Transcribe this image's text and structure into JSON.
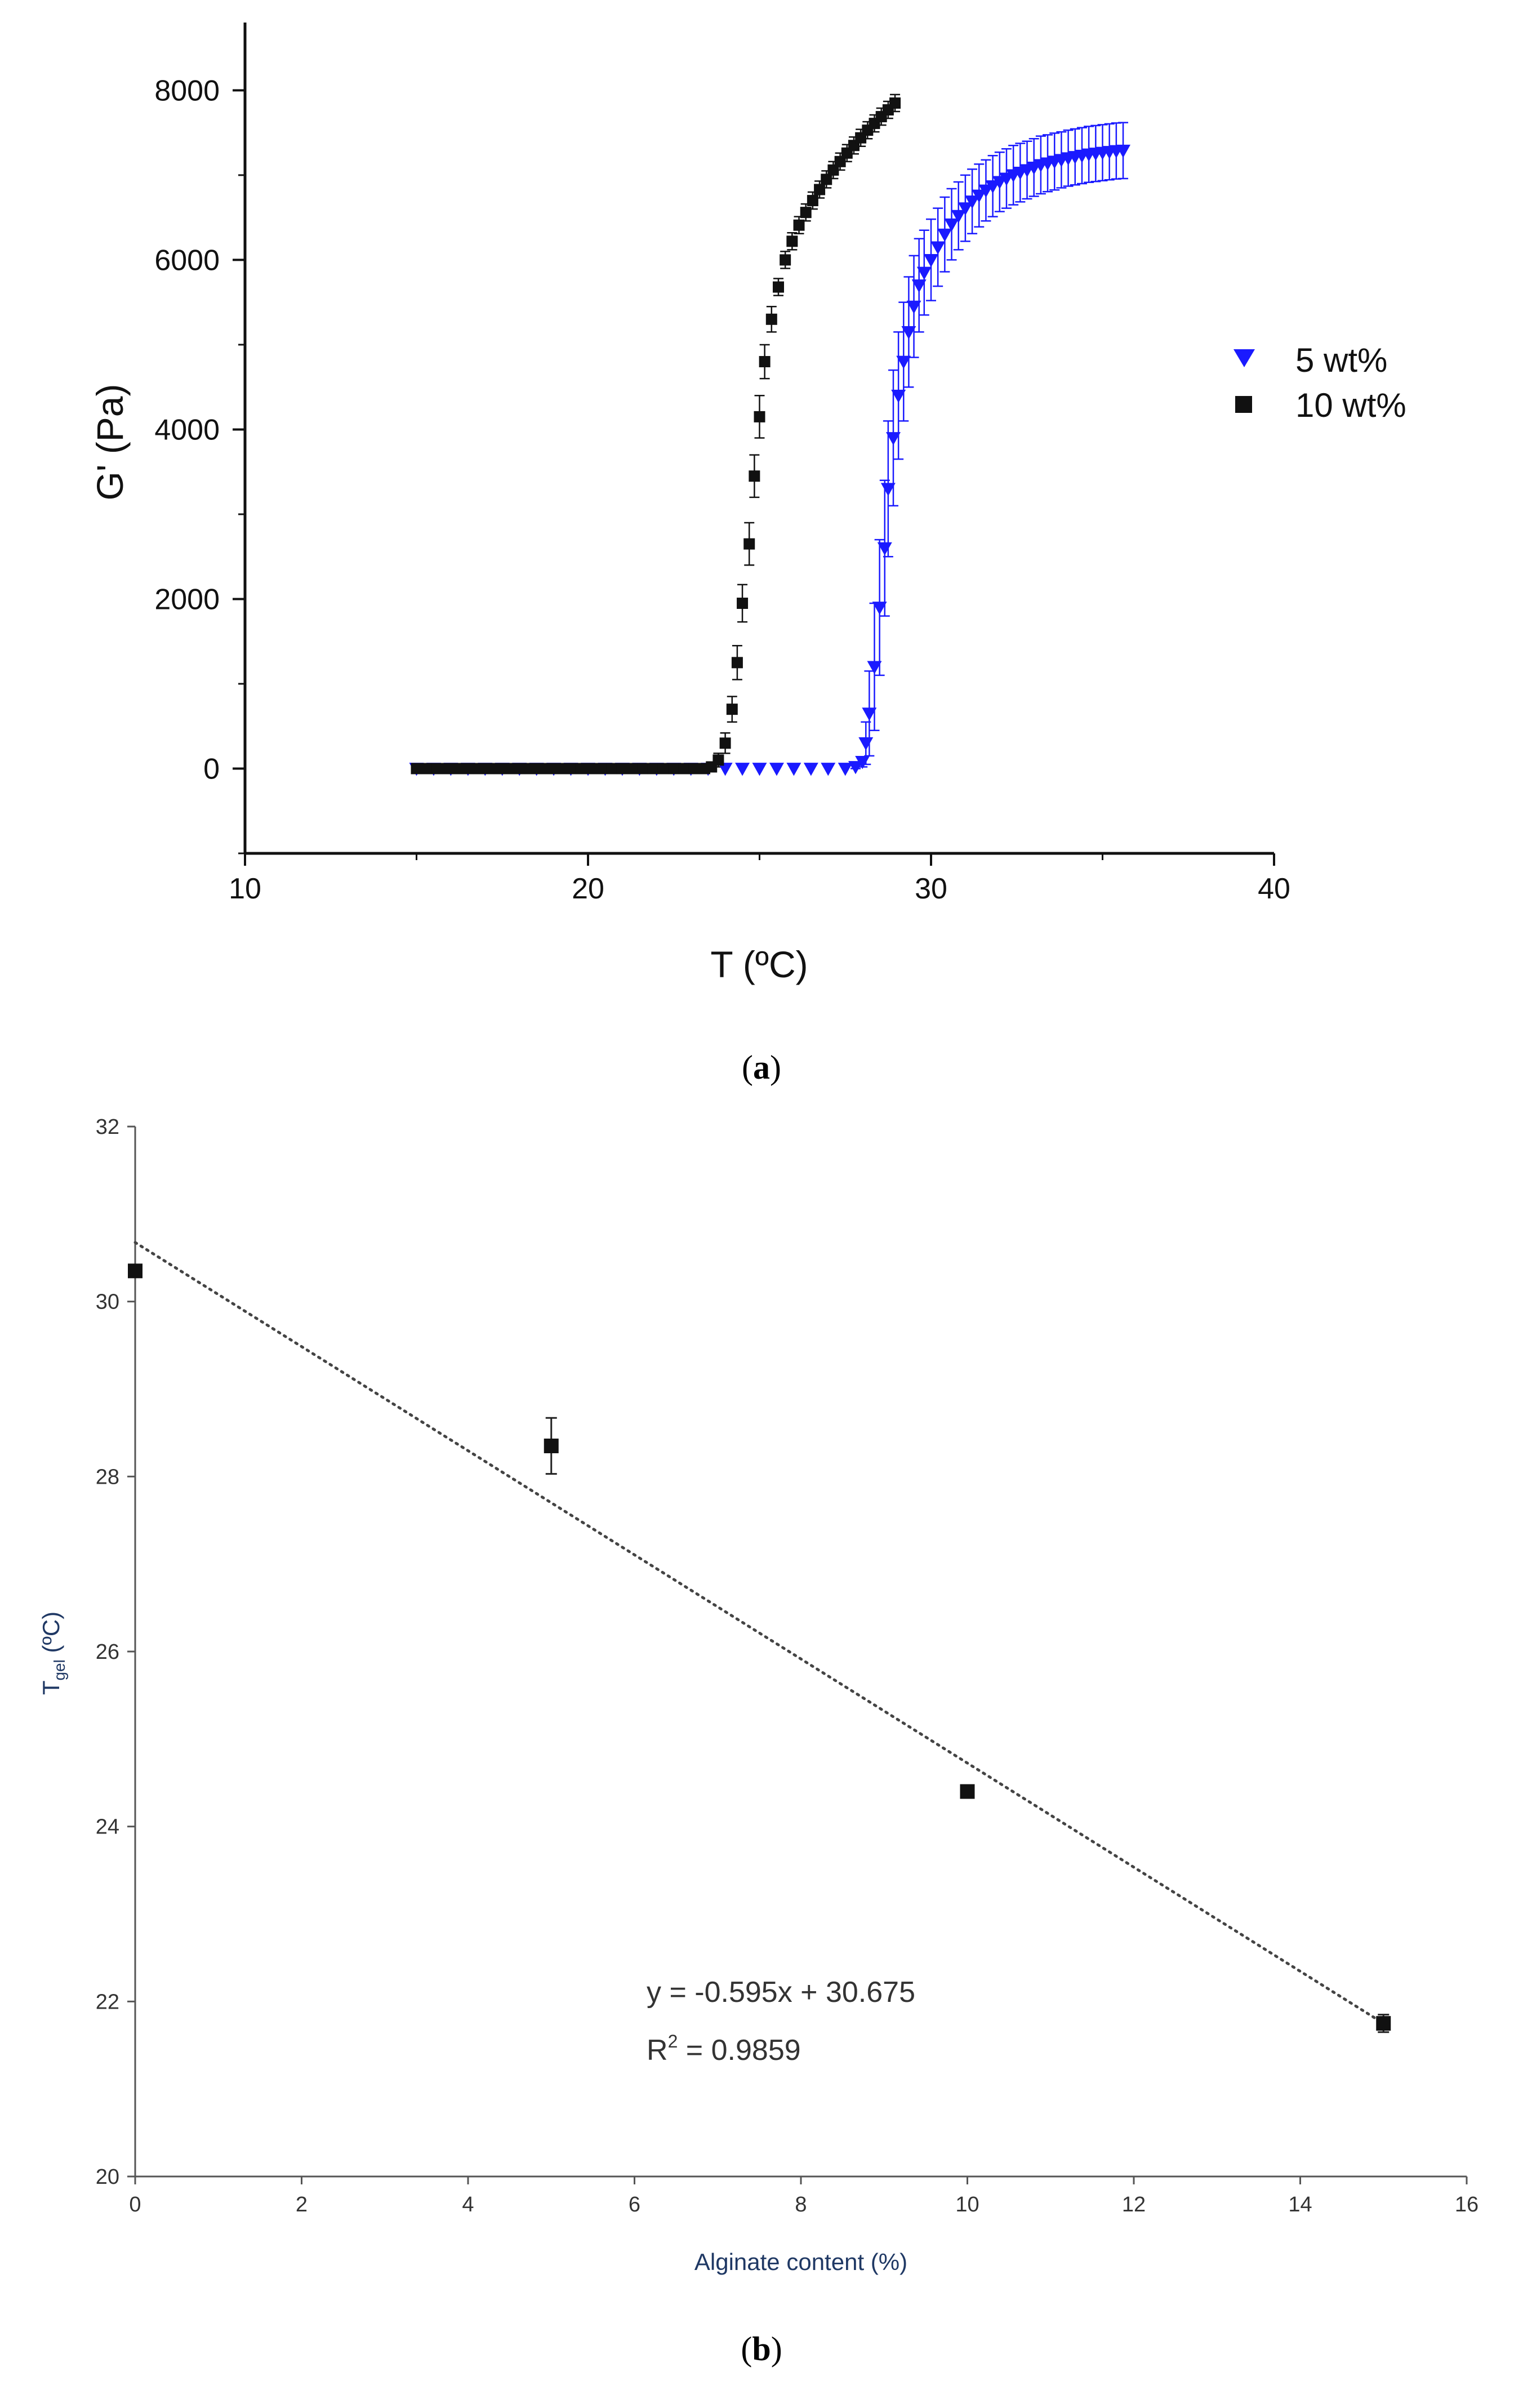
{
  "chart_data": [
    {
      "type": "scatter",
      "panel": "a",
      "caption": {
        "open": "(",
        "letter": "a",
        "close": ")"
      },
      "xlabel": "T (ºC)",
      "ylabel": "G' (Pa)",
      "xlim": [
        10,
        40
      ],
      "ylim": [
        -1000,
        8800
      ],
      "xticks": [
        "10",
        "20",
        "30",
        "40"
      ],
      "yticks": [
        "0",
        "2000",
        "4000",
        "6000",
        "8000"
      ],
      "legend_position": "right",
      "series": [
        {
          "name": "5 wt%",
          "marker": "triangle-down",
          "color": "#1a1aff",
          "points": [
            [
              15.0,
              0
            ],
            [
              15.5,
              0
            ],
            [
              16.0,
              0
            ],
            [
              16.5,
              0
            ],
            [
              17.0,
              0
            ],
            [
              17.5,
              0
            ],
            [
              18.0,
              0
            ],
            [
              18.5,
              0
            ],
            [
              19.0,
              0
            ],
            [
              19.5,
              0
            ],
            [
              20.0,
              0
            ],
            [
              20.5,
              0
            ],
            [
              21.0,
              0
            ],
            [
              21.5,
              0
            ],
            [
              22.0,
              0
            ],
            [
              22.5,
              0
            ],
            [
              23.0,
              0
            ],
            [
              23.5,
              0
            ],
            [
              24.0,
              0
            ],
            [
              24.5,
              0
            ],
            [
              25.0,
              0
            ],
            [
              25.5,
              0
            ],
            [
              26.0,
              0
            ],
            [
              26.5,
              0
            ],
            [
              27.0,
              0
            ],
            [
              27.5,
              0
            ],
            [
              27.8,
              20
            ],
            [
              28.0,
              80
            ],
            [
              28.1,
              300
            ],
            [
              28.2,
              650
            ],
            [
              28.35,
              1200
            ],
            [
              28.5,
              1900
            ],
            [
              28.65,
              2600
            ],
            [
              28.75,
              3300
            ],
            [
              28.9,
              3900
            ],
            [
              29.05,
              4400
            ],
            [
              29.2,
              4800
            ],
            [
              29.35,
              5150
            ],
            [
              29.5,
              5450
            ],
            [
              29.65,
              5700
            ],
            [
              29.8,
              5850
            ],
            [
              30.0,
              6000
            ],
            [
              30.2,
              6150
            ],
            [
              30.4,
              6300
            ],
            [
              30.6,
              6420
            ],
            [
              30.8,
              6520
            ],
            [
              31.0,
              6610
            ],
            [
              31.2,
              6690
            ],
            [
              31.4,
              6760
            ],
            [
              31.6,
              6820
            ],
            [
              31.8,
              6870
            ],
            [
              32.0,
              6920
            ],
            [
              32.2,
              6960
            ],
            [
              32.4,
              7000
            ],
            [
              32.6,
              7030
            ],
            [
              32.8,
              7060
            ],
            [
              33.0,
              7090
            ],
            [
              33.2,
              7120
            ],
            [
              33.4,
              7140
            ],
            [
              33.6,
              7160
            ],
            [
              33.8,
              7180
            ],
            [
              34.0,
              7200
            ],
            [
              34.2,
              7215
            ],
            [
              34.4,
              7230
            ],
            [
              34.6,
              7245
            ],
            [
              34.8,
              7255
            ],
            [
              35.0,
              7265
            ],
            [
              35.2,
              7275
            ],
            [
              35.4,
              7285
            ],
            [
              35.6,
              7290
            ]
          ],
          "errors": [
            0,
            0,
            0,
            0,
            0,
            0,
            0,
            0,
            0,
            0,
            0,
            0,
            0,
            0,
            0,
            0,
            0,
            0,
            0,
            0,
            0,
            0,
            0,
            0,
            0,
            0,
            20,
            60,
            250,
            500,
            750,
            800,
            800,
            800,
            800,
            750,
            700,
            650,
            600,
            550,
            500,
            480,
            460,
            440,
            420,
            400,
            390,
            380,
            370,
            360,
            360,
            350,
            350,
            350,
            345,
            340,
            340,
            340,
            335,
            335,
            330,
            330,
            330,
            330,
            330,
            330,
            330,
            330,
            330,
            330
          ]
        },
        {
          "name": "10 wt%",
          "marker": "square",
          "color": "#111111",
          "points": [
            [
              15.0,
              0
            ],
            [
              15.3,
              0
            ],
            [
              15.6,
              0
            ],
            [
              15.9,
              0
            ],
            [
              16.2,
              0
            ],
            [
              16.5,
              0
            ],
            [
              16.8,
              0
            ],
            [
              17.1,
              0
            ],
            [
              17.4,
              0
            ],
            [
              17.7,
              0
            ],
            [
              18.0,
              0
            ],
            [
              18.3,
              0
            ],
            [
              18.6,
              0
            ],
            [
              18.9,
              0
            ],
            [
              19.2,
              0
            ],
            [
              19.5,
              0
            ],
            [
              19.8,
              0
            ],
            [
              20.1,
              0
            ],
            [
              20.4,
              0
            ],
            [
              20.7,
              0
            ],
            [
              21.0,
              0
            ],
            [
              21.3,
              0
            ],
            [
              21.6,
              0
            ],
            [
              21.9,
              0
            ],
            [
              22.2,
              0
            ],
            [
              22.5,
              0
            ],
            [
              22.8,
              0
            ],
            [
              23.1,
              0
            ],
            [
              23.4,
              0
            ],
            [
              23.6,
              20
            ],
            [
              23.8,
              100
            ],
            [
              24.0,
              300
            ],
            [
              24.2,
              700
            ],
            [
              24.35,
              1250
            ],
            [
              24.5,
              1950
            ],
            [
              24.7,
              2650
            ],
            [
              24.85,
              3450
            ],
            [
              25.0,
              4150
            ],
            [
              25.15,
              4800
            ],
            [
              25.35,
              5300
            ],
            [
              25.55,
              5680
            ],
            [
              25.75,
              6000
            ],
            [
              25.95,
              6220
            ],
            [
              26.15,
              6410
            ],
            [
              26.35,
              6560
            ],
            [
              26.55,
              6700
            ],
            [
              26.75,
              6830
            ],
            [
              26.95,
              6950
            ],
            [
              27.15,
              7060
            ],
            [
              27.35,
              7160
            ],
            [
              27.55,
              7260
            ],
            [
              27.75,
              7350
            ],
            [
              27.95,
              7440
            ],
            [
              28.15,
              7530
            ],
            [
              28.35,
              7610
            ],
            [
              28.55,
              7690
            ],
            [
              28.75,
              7770
            ],
            [
              28.95,
              7850
            ]
          ],
          "errors": [
            0,
            0,
            0,
            0,
            0,
            0,
            0,
            0,
            0,
            0,
            0,
            0,
            0,
            0,
            0,
            0,
            0,
            0,
            0,
            0,
            0,
            0,
            0,
            0,
            0,
            0,
            0,
            0,
            0,
            20,
            80,
            120,
            150,
            200,
            220,
            250,
            250,
            250,
            200,
            150,
            100,
            100,
            100,
            100,
            100,
            100,
            100,
            100,
            100,
            100,
            100,
            100,
            100,
            100,
            100,
            100,
            100,
            100
          ]
        }
      ]
    },
    {
      "type": "scatter",
      "panel": "b",
      "caption": {
        "open": "(",
        "letter": "b",
        "close": ")"
      },
      "xlabel": "Alginate content (%)",
      "ylabel_main": "T",
      "ylabel_sub": "gel",
      "ylabel_rest": " (ºC)",
      "xlim": [
        0,
        16
      ],
      "ylim": [
        20,
        32
      ],
      "xticks": [
        "0",
        "2",
        "4",
        "6",
        "8",
        "10",
        "12",
        "14",
        "16"
      ],
      "yticks": [
        "20",
        "22",
        "24",
        "26",
        "28",
        "30",
        "32"
      ],
      "series": [
        {
          "marker": "square",
          "color": "#111111",
          "points": [
            [
              0,
              30.35
            ],
            [
              5,
              28.35
            ],
            [
              10,
              24.4
            ],
            [
              15,
              21.75
            ]
          ],
          "errors": [
            0,
            0.32,
            0,
            0.1
          ]
        }
      ],
      "trendline": {
        "slope": -0.595,
        "intercept": 30.675,
        "x_range": [
          0,
          15
        ],
        "style": "dotted",
        "equation": "y = -0.595x + 30.675",
        "r2_label": "R",
        "r2_sup": "2",
        "r2_value": " = 0.9859"
      }
    }
  ]
}
